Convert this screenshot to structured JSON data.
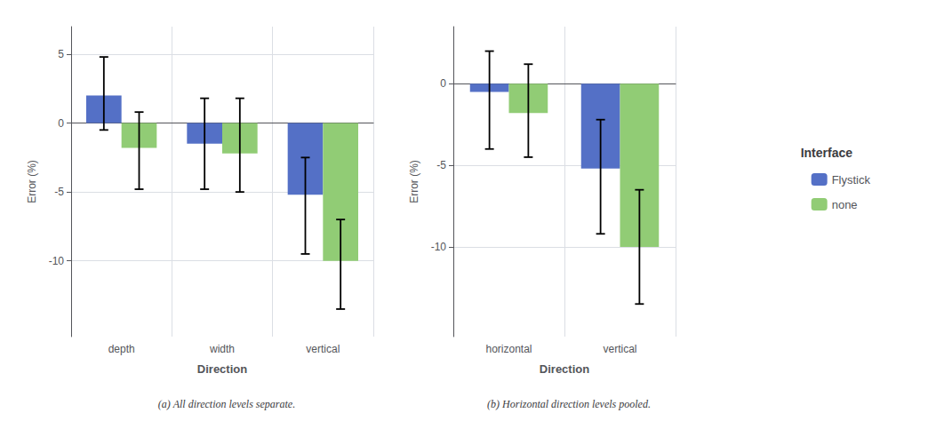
{
  "chart_data": [
    {
      "type": "bar",
      "x_label": "Direction",
      "y_label": "Error (%)",
      "caption": "(a) All direction levels separate.",
      "categories": [
        "depth",
        "width",
        "vertical"
      ],
      "series": [
        {
          "name": "Flystick",
          "values": [
            2.0,
            -1.5,
            -5.2
          ],
          "ci_lower": [
            -0.5,
            -4.8,
            -9.5
          ],
          "ci_upper": [
            4.8,
            1.8,
            -2.5
          ]
        },
        {
          "name": "none",
          "values": [
            -1.8,
            -2.2,
            -10.0
          ],
          "ci_lower": [
            -4.8,
            -5.0,
            -13.5
          ],
          "ci_upper": [
            0.8,
            1.8,
            -7.0
          ]
        }
      ],
      "ylim": [
        -15.5,
        7.0
      ],
      "yticks": [
        5,
        0,
        -5,
        -10
      ],
      "grid": true
    },
    {
      "type": "bar",
      "x_label": "Direction",
      "y_label": "Error (%)",
      "caption": "(b) Horizontal direction levels pooled.",
      "categories": [
        "horizontal",
        "vertical"
      ],
      "series": [
        {
          "name": "Flystick",
          "values": [
            -0.5,
            -5.2
          ],
          "ci_lower": [
            -4.0,
            -9.2
          ],
          "ci_upper": [
            2.0,
            -2.2
          ]
        },
        {
          "name": "none",
          "values": [
            -1.8,
            -10.0
          ],
          "ci_lower": [
            -4.5,
            -13.5
          ],
          "ci_upper": [
            1.2,
            -6.5
          ]
        }
      ],
      "ylim": [
        -15.5,
        3.5
      ],
      "yticks": [
        0,
        -5,
        -10
      ],
      "grid": true
    }
  ],
  "legend": "right",
  "legend_title": "Interface"
}
